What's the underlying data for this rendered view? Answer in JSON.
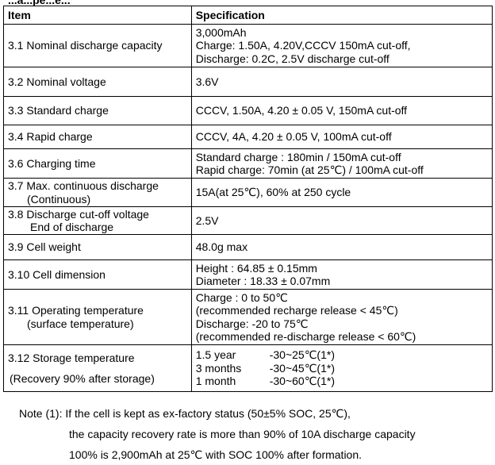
{
  "header": {
    "cut_text": "...a...pe...e..."
  },
  "table": {
    "col_item": "Item",
    "col_spec": "Specification",
    "rows": [
      {
        "item": [
          "3.1 Nominal discharge capacity"
        ],
        "spec": [
          "3,000mAh",
          "Charge: 1.50A, 4.20V,CCCV 150mA cut-off,",
          "Discharge: 0.2C, 2.5V discharge cut-off"
        ]
      },
      {
        "item": [
          "3.2 Nominal voltage"
        ],
        "spec": [
          "3.6V"
        ]
      },
      {
        "item": [
          "3.3 Standard charge"
        ],
        "spec": [
          "CCCV, 1.50A, 4.20 ± 0.05 V, 150mA cut-off"
        ]
      },
      {
        "item": [
          "3.4 Rapid charge"
        ],
        "spec": [
          "CCCV, 4A, 4.20 ± 0.05 V, 100mA cut-off"
        ]
      },
      {
        "item": [
          "3.6 Charging time"
        ],
        "spec": [
          "Standard charge : 180min / 150mA cut-off",
          "Rapid charge: 70min (at 25℃) / 100mA cut-off"
        ]
      },
      {
        "item": [
          "3.7 Max. continuous discharge",
          "(Continuous)"
        ],
        "spec": [
          "15A(at 25℃), 60% at 250 cycle"
        ]
      },
      {
        "item": [
          "3.8 Discharge cut-off voltage",
          "End of discharge"
        ],
        "spec": [
          "2.5V"
        ]
      },
      {
        "item": [
          "3.9 Cell weight"
        ],
        "spec": [
          "48.0g max"
        ]
      },
      {
        "item": [
          "3.10 Cell dimension"
        ],
        "spec": [
          "Height : 64.85 ± 0.15mm",
          "Diameter : 18.33 ± 0.07mm"
        ]
      },
      {
        "item": [
          "3.11 Operating temperature",
          "(surface temperature)"
        ],
        "spec": [
          "Charge :    0 to 50℃",
          "(recommended recharge release < 45℃)",
          "Discharge: -20 to 75℃",
          "(recommended re-discharge release < 60℃)"
        ]
      }
    ],
    "storage": {
      "item": [
        "3.12 Storage temperature",
        "(Recovery 90% after storage)"
      ],
      "periods": [
        "1.5 year",
        "3 months",
        "1 month"
      ],
      "ranges": [
        "-30~25℃(1*)",
        "-30~45℃(1*)",
        "-30~60℃(1*)"
      ]
    }
  },
  "notes": [
    "Note (1): If the cell is kept as ex-factory status (50±5% SOC, 25℃),",
    "the capacity recovery rate is more than 90% of 10A discharge capacity",
    "100% is 2,900mAh at 25℃ with SOC 100% after formation."
  ]
}
